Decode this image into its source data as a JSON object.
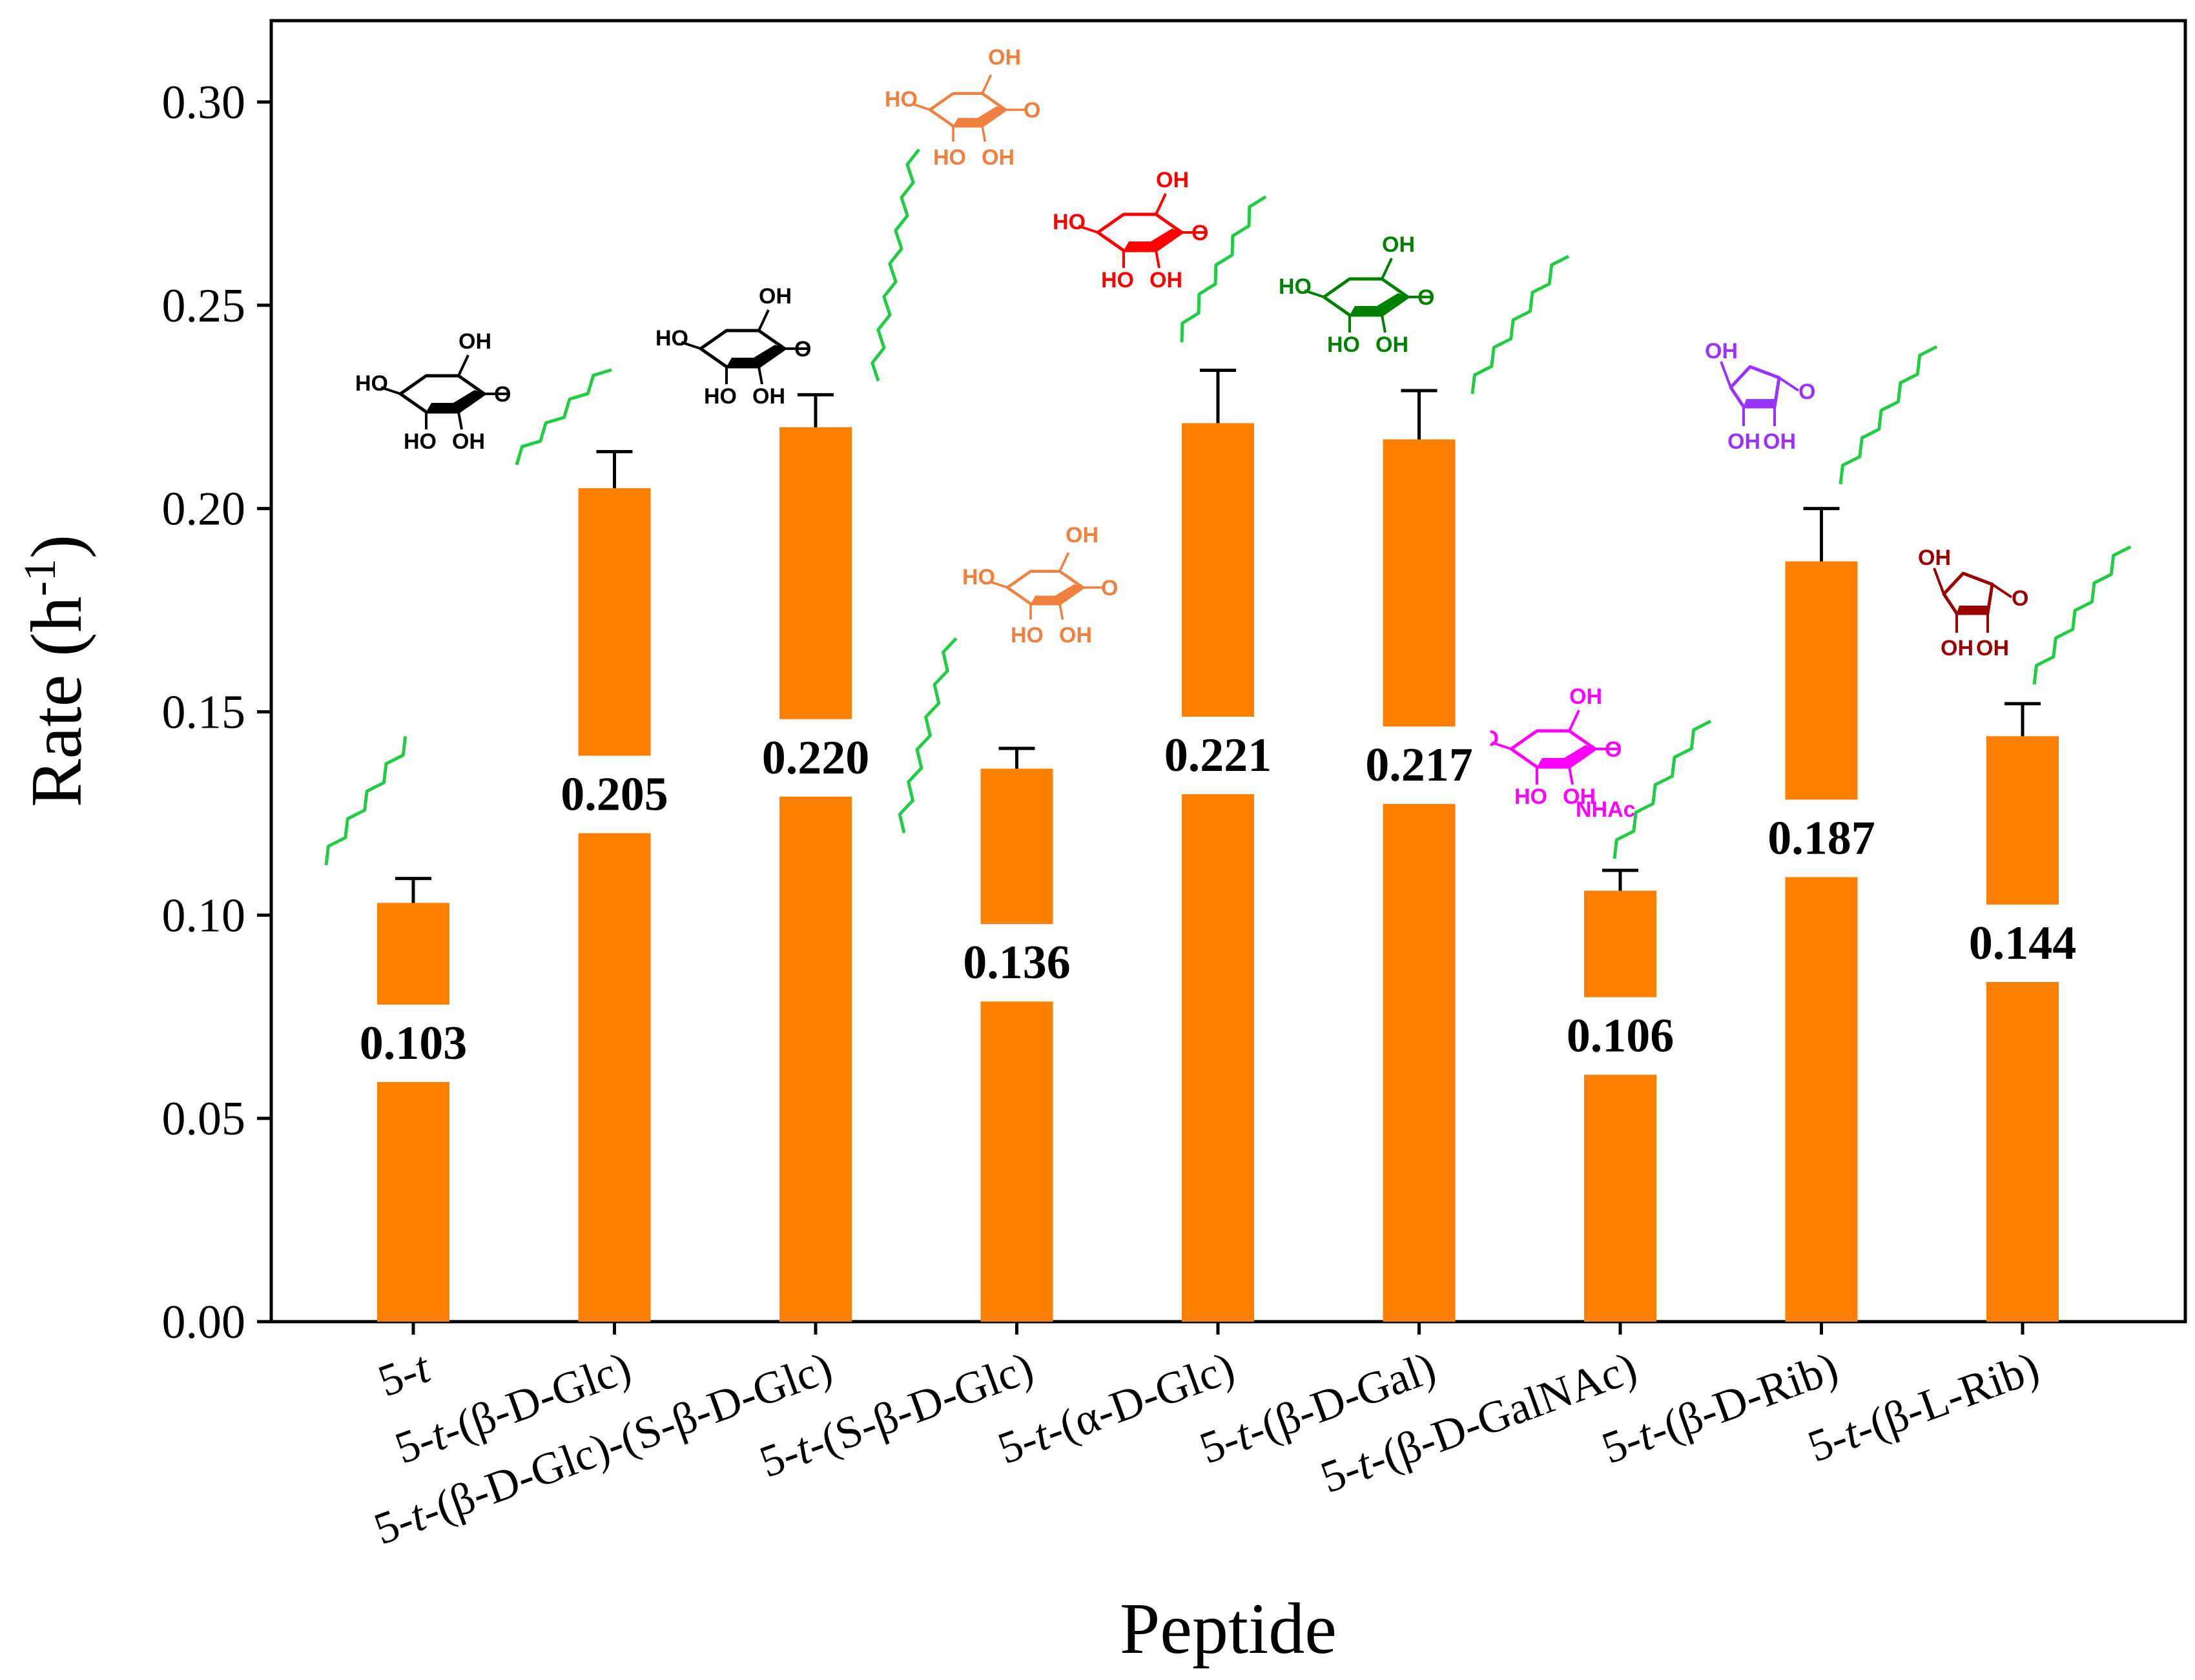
{
  "chart_data": {
    "type": "bar",
    "xlabel": "Peptide",
    "ylabel_main": "Rate (h",
    "ylabel_sup": "-1",
    "ylabel_close": ")",
    "ylim": [
      0,
      0.32
    ],
    "y_ticks": [
      "0.00",
      "0.05",
      "0.10",
      "0.15",
      "0.20",
      "0.25",
      "0.30"
    ],
    "bar_color": "#ff8000",
    "categories": [
      {
        "prefix": "5-",
        "t": "t",
        "suffix": "",
        "y": 0.103,
        "err": 0.006,
        "label": "0.103"
      },
      {
        "prefix": "5-",
        "t": "t",
        "suffix": "-(β-D-Glc)",
        "y": 0.205,
        "err": 0.009,
        "label": "0.205"
      },
      {
        "prefix": "5-",
        "t": "t",
        "suffix": "-(β-D-Glc)-(S-β-D-Glc)",
        "y": 0.22,
        "err": 0.008,
        "label": "0.220"
      },
      {
        "prefix": "5-",
        "t": "t",
        "suffix": "-(S-β-D-Glc)",
        "y": 0.136,
        "err": 0.005,
        "label": "0.136"
      },
      {
        "prefix": "5-",
        "t": "t",
        "suffix": "-(α-D-Glc)",
        "y": 0.221,
        "err": 0.013,
        "label": "0.221"
      },
      {
        "prefix": "5-",
        "t": "t",
        "suffix": "-(β-D-Gal)",
        "y": 0.217,
        "err": 0.012,
        "label": "0.217"
      },
      {
        "prefix": "5-",
        "t": "t",
        "suffix": "-(β-D-GalNAc)",
        "y": 0.106,
        "err": 0.005,
        "label": "0.106"
      },
      {
        "prefix": "5-",
        "t": "t",
        "suffix": "-(β-D-Rib)",
        "y": 0.187,
        "err": 0.013,
        "label": "0.187"
      },
      {
        "prefix": "5-",
        "t": "t",
        "suffix": "-(β-L-Rib)",
        "y": 0.144,
        "err": 0.008,
        "label": "0.144"
      }
    ]
  },
  "chem_labels": {
    "oh": "OH",
    "ho": "HO",
    "o": "O",
    "nhac": "NHAc"
  },
  "chem_colors": {
    "glc": "#000000",
    "s_glc": "#f08040",
    "a_glc": "#ff0000",
    "gal": "#008000",
    "galnac": "#ff00ff",
    "d_rib": "#9933ff",
    "l_rib": "#990000",
    "lipid": "#22cc44"
  }
}
